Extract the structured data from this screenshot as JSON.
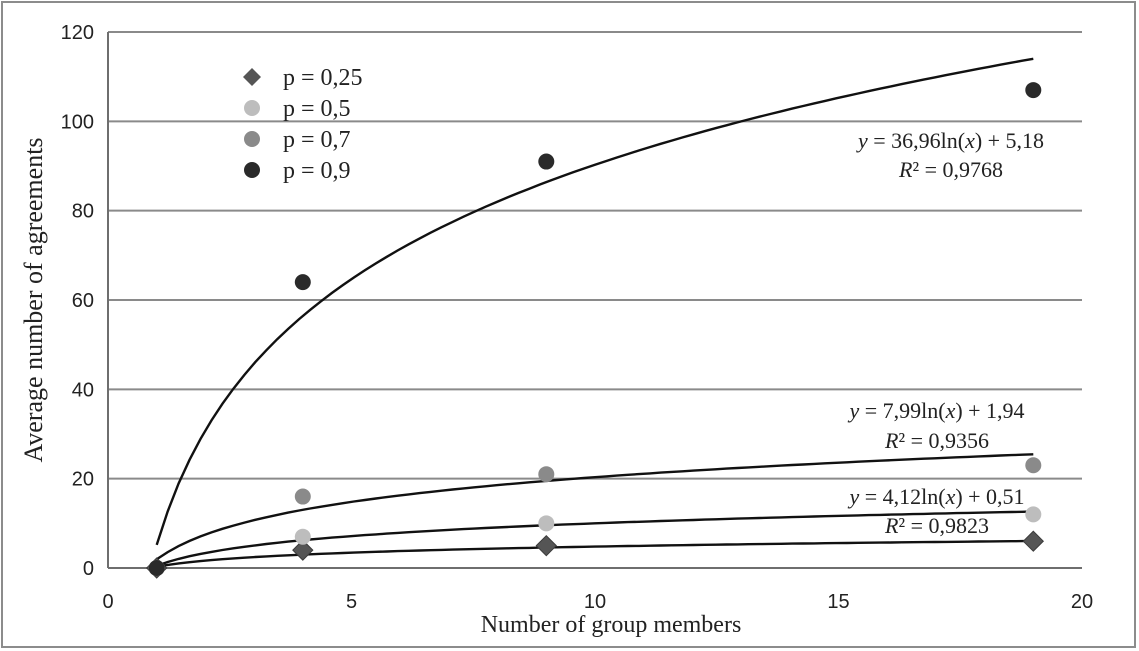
{
  "chart_data": {
    "type": "scatter",
    "title": "",
    "xlabel": "Number of group members",
    "ylabel": "Average number of agreements",
    "xlim": [
      0,
      20
    ],
    "ylim": [
      0,
      120
    ],
    "x_ticks": [
      "0",
      "5",
      "10",
      "15",
      "20"
    ],
    "y_ticks": [
      "0",
      "20",
      "40",
      "60",
      "80",
      "100",
      "120"
    ],
    "grid": "horizontal",
    "legend_position": "top-left",
    "series": [
      {
        "name": "p = 0,25",
        "marker": "diamond",
        "color": "#555555",
        "x": [
          1,
          4,
          9,
          19
        ],
        "y": [
          0,
          4,
          5,
          6
        ]
      },
      {
        "name": "p = 0,5",
        "marker": "circle",
        "color": "#bdbdbd",
        "x": [
          1,
          4,
          9,
          19
        ],
        "y": [
          0,
          7,
          10,
          12
        ]
      },
      {
        "name": "p = 0,7",
        "marker": "circle",
        "color": "#8a8a8a",
        "x": [
          1,
          4,
          9,
          19
        ],
        "y": [
          0,
          16,
          21,
          23
        ]
      },
      {
        "name": "p = 0,9",
        "marker": "circle",
        "color": "#2a2a2a",
        "x": [
          1,
          4,
          9,
          19
        ],
        "y": [
          0,
          64,
          91,
          107
        ]
      }
    ],
    "trendlines": [
      {
        "type": "log",
        "a": 36.96,
        "b": 5.18,
        "x_range": [
          1,
          19
        ],
        "eq_pre": "y",
        "eq_post": " = 36,96ln(",
        "eq_x": "x",
        "eq_end": ") + 5,18",
        "r2_pre": "R",
        "r2_post": "² = 0,9768"
      },
      {
        "type": "log",
        "a": 7.99,
        "b": 1.94,
        "x_range": [
          1,
          19
        ],
        "eq_pre": "y",
        "eq_post": " = 7,99ln(",
        "eq_x": "x",
        "eq_end": ") + 1,94",
        "r2_pre": "R",
        "r2_post": "² = 0,9356"
      },
      {
        "type": "log",
        "a": 4.12,
        "b": 0.51,
        "x_range": [
          1,
          19
        ],
        "eq_pre": "y",
        "eq_post": " = 4,12ln(",
        "eq_x": "x",
        "eq_end": ") + 0,51",
        "r2_pre": "R",
        "r2_post": "² = 0,9823"
      },
      {
        "type": "log",
        "a": 1.95,
        "b": 0.3,
        "x_range": [
          1,
          19
        ],
        "eq_pre": "",
        "eq_post": "",
        "eq_x": "",
        "eq_end": "",
        "r2_pre": "",
        "r2_post": ""
      }
    ]
  }
}
